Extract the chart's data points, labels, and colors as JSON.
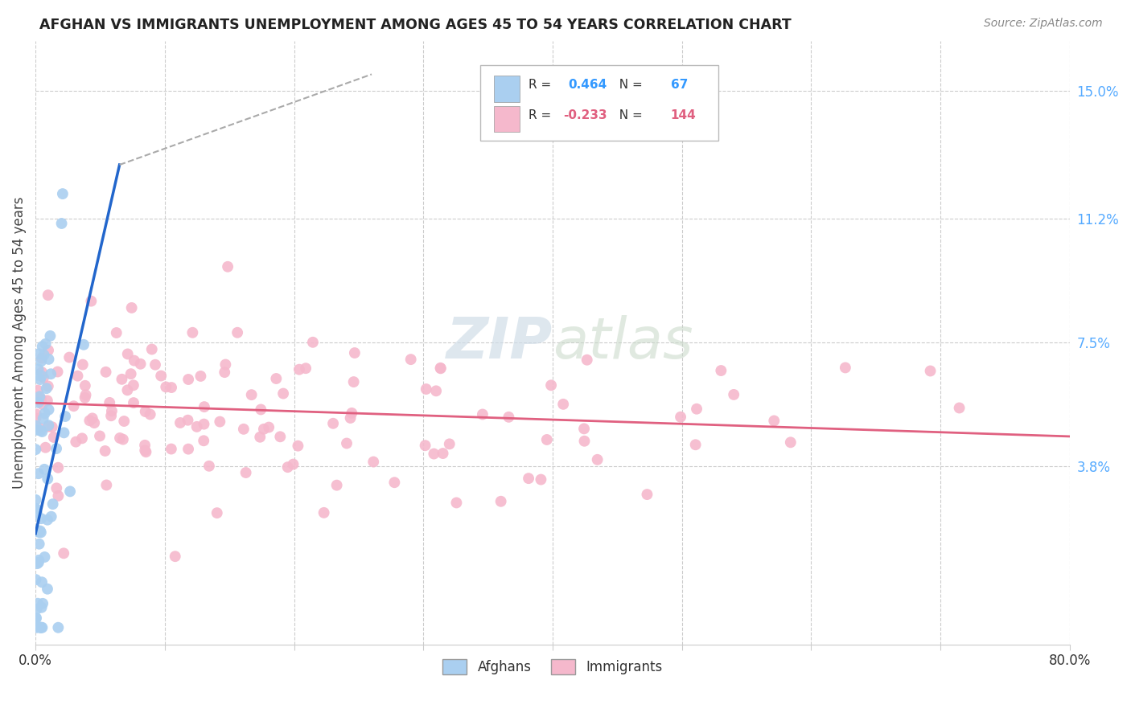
{
  "title": "AFGHAN VS IMMIGRANTS UNEMPLOYMENT AMONG AGES 45 TO 54 YEARS CORRELATION CHART",
  "source": "Source: ZipAtlas.com",
  "ylabel": "Unemployment Among Ages 45 to 54 years",
  "xlim": [
    0.0,
    0.8
  ],
  "ylim": [
    -0.015,
    0.165
  ],
  "xticks": [
    0.0,
    0.1,
    0.2,
    0.3,
    0.4,
    0.5,
    0.6,
    0.7,
    0.8
  ],
  "xticklabels": [
    "0.0%",
    "",
    "",
    "",
    "",
    "",
    "",
    "",
    "80.0%"
  ],
  "ytick_labels_right": [
    "15.0%",
    "11.2%",
    "7.5%",
    "3.8%"
  ],
  "ytick_values_right": [
    0.15,
    0.112,
    0.075,
    0.038
  ],
  "afghans_R": 0.464,
  "afghans_N": 67,
  "immigrants_R": -0.233,
  "immigrants_N": 144,
  "afghans_color": "#aacff0",
  "immigrants_color": "#f5b8cc",
  "afghans_line_color": "#2266cc",
  "immigrants_line_color": "#e06080",
  "afghans_seed": 12,
  "immigrants_seed": 7
}
